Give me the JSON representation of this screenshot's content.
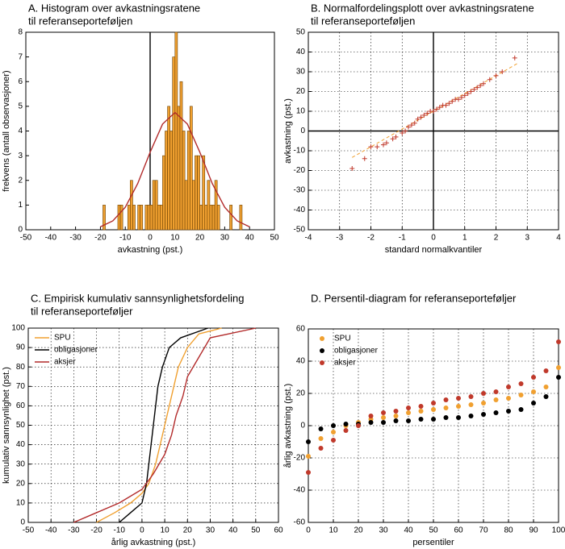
{
  "chart_data": [
    {
      "type": "histogram",
      "title": [
        "A. Histogram over avkastningsratene",
        "til referanseporteføljen"
      ],
      "x_label": "avkastning (pst.)",
      "y_label": "frekvens (antall observasjoner)",
      "bins": [
        -19,
        -18,
        -17,
        -16,
        -15,
        -14,
        -13,
        -12,
        -11,
        -10,
        -9,
        -8,
        -7,
        -6,
        -5,
        -4,
        -3,
        -2,
        -1,
        0,
        1,
        2,
        3,
        4,
        5,
        6,
        7,
        8,
        9,
        10,
        11,
        12,
        13,
        14,
        15,
        16,
        17,
        18,
        19,
        20,
        21,
        22,
        23,
        24,
        25,
        26,
        27,
        28,
        29,
        30,
        31,
        32,
        33,
        34,
        35,
        36,
        37
      ],
      "values": [
        1,
        0,
        0,
        0,
        0,
        0,
        1,
        1,
        0,
        0,
        1,
        2,
        1,
        0,
        1,
        1,
        0,
        1,
        1,
        1,
        2,
        2,
        1,
        1,
        3,
        4,
        5,
        4,
        7,
        8,
        5,
        6,
        4,
        2,
        4,
        5,
        2,
        3,
        3,
        1,
        3,
        1,
        2,
        1,
        1,
        2,
        1,
        0,
        0,
        0,
        0,
        1,
        0,
        0,
        0,
        1
      ],
      "color": "#f0a030",
      "curve": {
        "x": [
          -20,
          -15,
          -10,
          -5,
          0,
          5,
          10,
          15,
          20,
          25,
          30,
          35,
          40
        ],
        "values": [
          0.12,
          0.36,
          0.91,
          1.87,
          3.14,
          4.28,
          4.75,
          4.28,
          3.14,
          1.87,
          0.91,
          0.36,
          0.12
        ],
        "color": "#b22a2a"
      },
      "xlim": [
        -50,
        50
      ],
      "xticks": [
        -50,
        -40,
        -30,
        -20,
        -10,
        0,
        10,
        20,
        30,
        40,
        50
      ],
      "ylim": [
        0,
        8
      ],
      "yticks": [
        0,
        1,
        2,
        3,
        4,
        5,
        6,
        7,
        8
      ],
      "grid": false,
      "zero_line": "x"
    },
    {
      "type": "scatter",
      "title": [
        "B. Normalfordelingsplott over avkastningsratene",
        "til referanseporteføljen"
      ],
      "x_label": "standard normalkvantiler",
      "y_label": "avkastning (pst.)",
      "series": [
        {
          "color": "#c0392b",
          "marker": "plus",
          "x": [
            -2.6,
            -2.2,
            -2.0,
            -1.8,
            -1.6,
            -1.5,
            -1.3,
            -1.2,
            -1.0,
            -0.9,
            -0.8,
            -0.7,
            -0.6,
            -0.5,
            -0.4,
            -0.3,
            -0.2,
            -0.1,
            0,
            0.1,
            0.2,
            0.3,
            0.4,
            0.5,
            0.6,
            0.7,
            0.8,
            0.9,
            1.0,
            1.1,
            1.2,
            1.3,
            1.4,
            1.5,
            1.6,
            1.8,
            2.0,
            2.2,
            2.6
          ],
          "values": [
            -19,
            -14,
            -8,
            -8,
            -7,
            -6,
            -4,
            -3,
            -1,
            0,
            2,
            3,
            4,
            6,
            7,
            8,
            9,
            10,
            10,
            11,
            12,
            13,
            13,
            14,
            15,
            16,
            16,
            17,
            18,
            19,
            20,
            21,
            22,
            23,
            24,
            26,
            28,
            30,
            37
          ]
        }
      ],
      "fit_line": {
        "x": [
          -2.6,
          2.7
        ],
        "values": [
          -13.4,
          34.3
        ],
        "color": "#f0a030"
      },
      "xlim": [
        -4,
        4
      ],
      "xticks": [
        -4,
        -3,
        -2,
        -1,
        0,
        1,
        2,
        3,
        4
      ],
      "ylim": [
        -50,
        50
      ],
      "yticks": [
        -50,
        -40,
        -30,
        -20,
        -10,
        0,
        10,
        20,
        30,
        40,
        50
      ],
      "grid": true,
      "zero_line": "both"
    },
    {
      "type": "line",
      "title": [
        "C. Empirisk kumulativ sannsynlighetsfordeling",
        "til referanseporteføljer"
      ],
      "x_label": "årlig avkastning (pst.)",
      "y_label": "kumulativ sannsynlighet (pst.)",
      "series": [
        {
          "name": "SPU",
          "color": "#f0a030",
          "x": [
            -20,
            -12,
            -5,
            0,
            3,
            6,
            8,
            10,
            12,
            14,
            16,
            20,
            25,
            35
          ],
          "values": [
            0,
            5,
            10,
            15,
            20,
            30,
            40,
            50,
            60,
            70,
            80,
            90,
            97,
            100
          ]
        },
        {
          "name": "obligasjoner",
          "color": "#000000",
          "x": [
            -10,
            -5,
            0,
            2,
            3,
            4,
            5,
            6,
            7,
            9,
            12,
            17,
            29
          ],
          "values": [
            0,
            5,
            10,
            20,
            30,
            40,
            50,
            60,
            70,
            80,
            90,
            95,
            100
          ]
        },
        {
          "name": "aksjer",
          "color": "#b22a2a",
          "x": [
            -30,
            -20,
            -10,
            0,
            5,
            10,
            13,
            15,
            18,
            20,
            25,
            30,
            50
          ],
          "values": [
            0,
            5,
            10,
            17,
            25,
            35,
            45,
            55,
            65,
            75,
            85,
            95,
            100
          ]
        }
      ],
      "xlim": [
        -50,
        60
      ],
      "xticks": [
        -50,
        -40,
        -30,
        -20,
        -10,
        0,
        10,
        20,
        30,
        40,
        50,
        60
      ],
      "ylim": [
        0,
        100
      ],
      "yticks": [
        0,
        10,
        20,
        30,
        40,
        50,
        60,
        70,
        80,
        90,
        100
      ],
      "grid": true,
      "legend": "upper left"
    },
    {
      "type": "scatter",
      "title": [
        "D.  Persentil-diagram for referanseporteføljer"
      ],
      "x_label": "persentiler",
      "y_label": "årlig avkastning (pst.)",
      "x": [
        0,
        5,
        10,
        15,
        20,
        25,
        30,
        35,
        40,
        45,
        50,
        55,
        60,
        65,
        70,
        75,
        80,
        85,
        90,
        95,
        100
      ],
      "series": [
        {
          "name": "SPU",
          "color": "#f0a030",
          "marker": "circle",
          "values": [
            -19,
            -8,
            -4,
            0,
            2,
            4,
            5,
            6,
            8,
            9,
            10,
            11,
            12,
            13,
            14,
            16,
            17,
            19,
            21,
            24,
            36
          ]
        },
        {
          "name": "obligasjoner",
          "color": "#000000",
          "marker": "circle",
          "values": [
            -10,
            -2,
            0,
            1,
            1,
            2,
            2,
            3,
            3,
            4,
            4,
            5,
            5,
            6,
            7,
            8,
            9,
            10,
            14,
            18,
            30
          ]
        },
        {
          "name": "aksjer",
          "color": "#c0392b",
          "marker": "circle",
          "values": [
            -29,
            -14,
            -9,
            -3,
            0,
            6,
            8,
            9,
            11,
            12,
            14,
            16,
            17,
            18,
            20,
            21,
            24,
            26,
            30,
            34,
            52
          ]
        }
      ],
      "xlim": [
        0,
        100
      ],
      "xticks": [
        0,
        10,
        20,
        30,
        40,
        50,
        60,
        70,
        80,
        90,
        100
      ],
      "ylim": [
        -60,
        60
      ],
      "yticks": [
        -60,
        -40,
        -20,
        0,
        20,
        40,
        60
      ],
      "grid": true,
      "legend": "upper left"
    }
  ]
}
